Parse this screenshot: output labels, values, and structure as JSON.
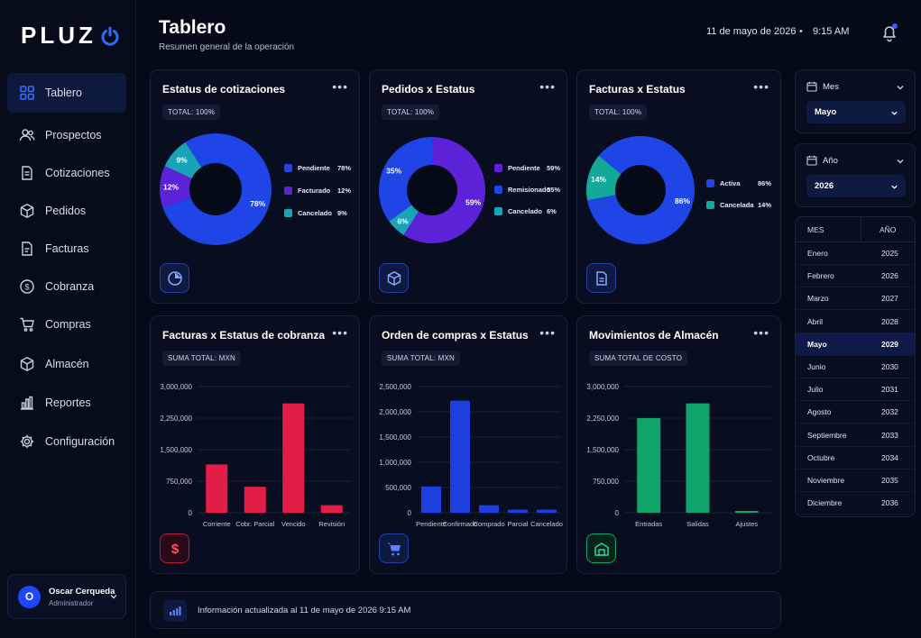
{
  "brand": {
    "logo_text": "PLUZ"
  },
  "sidebar": {
    "items": [
      {
        "label": "Tablero",
        "icon": "grid-icon",
        "active": true
      },
      {
        "label": "Prospectos",
        "icon": "users-icon"
      },
      {
        "label": "Cotizaciones",
        "icon": "document-icon"
      },
      {
        "label": "Pedidos",
        "icon": "box-icon"
      },
      {
        "label": "Facturas",
        "icon": "invoice-icon"
      },
      {
        "label": "Cobranza",
        "icon": "dollar-circle-icon"
      },
      {
        "label": "Compras",
        "icon": "cart-icon"
      },
      {
        "label": "Almacén",
        "icon": "warehouse-box-icon"
      },
      {
        "label": "Reportes",
        "icon": "bar-chart-icon"
      },
      {
        "label": "Configuración",
        "icon": "gear-icon"
      }
    ],
    "user": {
      "initial": "O",
      "name": "Oscar Cerqueda",
      "role": "Administrador"
    }
  },
  "header": {
    "title": "Tablero",
    "subtitle": "Resumen general de la operación",
    "date": "11 de mayo de 2026",
    "separator": "•",
    "time": "9:15 AM"
  },
  "cards": {
    "cotizaciones": {
      "title": "Estatus de cotizaciones",
      "pill": "TOTAL: 100%",
      "more": "•••"
    },
    "pedidos": {
      "title": "Pedidos x Estatus",
      "pill": "TOTAL: 100%",
      "more": "•••"
    },
    "facturas": {
      "title": "Facturas x Estatus",
      "pill": "TOTAL: 100%",
      "more": "•••"
    },
    "cobranza": {
      "title": "Facturas x Estatus de cobranza",
      "pill": "SUMA TOTAL: MXN",
      "more": "•••"
    },
    "compras": {
      "title": "Orden de compras x Estatus",
      "pill": "SUMA TOTAL: MXN",
      "more": "•••"
    },
    "almacen": {
      "title": "Movimientos de Almacén",
      "pill": "SUMA TOTAL DE COSTO",
      "more": "•••"
    }
  },
  "chart_data": [
    {
      "type": "pie",
      "id": "cotizaciones",
      "categories": [
        "Pendiente",
        "Facturado",
        "Cancelado"
      ],
      "values": [
        78,
        12,
        9
      ],
      "labels": [
        "78%",
        "12%",
        "9%"
      ],
      "colors": [
        "#1f45e6",
        "#5b22d8",
        "#1aa3b8"
      ]
    },
    {
      "type": "pie",
      "id": "pedidos",
      "categories": [
        "Pendiente",
        "Remisionado",
        "Cancelado"
      ],
      "values": [
        59,
        35,
        6
      ],
      "labels": [
        "59%",
        "35%",
        "6%"
      ],
      "colors": [
        "#5b22d8",
        "#1f45e6",
        "#1aa3b8"
      ]
    },
    {
      "type": "pie",
      "id": "facturas",
      "categories": [
        "Activa",
        "Cancelada"
      ],
      "values": [
        86,
        14
      ],
      "labels": [
        "86%",
        "14%"
      ],
      "colors": [
        "#1f45e6",
        "#14a898"
      ]
    },
    {
      "type": "bar",
      "id": "cobranza",
      "categories": [
        "Corriente",
        "Cobr. Parcial",
        "Vencido",
        "Revisión"
      ],
      "values": [
        1150000,
        620000,
        2600000,
        180000
      ],
      "yticks": [
        "3,000,000",
        "2,250,000",
        "1,500,000",
        "750,000",
        "0"
      ],
      "ylim": [
        0,
        3000000
      ],
      "color": "#e11d48"
    },
    {
      "type": "bar",
      "id": "compras",
      "categories": [
        "Pendiente",
        "Confirmado",
        "Comprado",
        "Parcial",
        "Cancelado"
      ],
      "values": [
        520000,
        2220000,
        150000,
        60000,
        60000
      ],
      "yticks": [
        "2,500,000",
        "2,000,000",
        "1,500,000",
        "1,000,000",
        "500,000",
        "0"
      ],
      "ylim": [
        0,
        2500000
      ],
      "color": "#1d3fe0"
    },
    {
      "type": "bar",
      "id": "almacen",
      "categories": [
        "Entradas",
        "Salidas",
        "Ajustes"
      ],
      "values": [
        2250000,
        2600000,
        20000
      ],
      "yticks": [
        "3,000,000",
        "2,250,000",
        "1,500,000",
        "750,000",
        "0"
      ],
      "ylim": [
        0,
        3000000
      ],
      "color": "#10a36a"
    }
  ],
  "filters": {
    "month": {
      "label": "Mes",
      "value": "Mayo"
    },
    "year": {
      "label": "Año",
      "value": "2026"
    }
  },
  "month_table": {
    "headers": [
      "MES",
      "AÑO"
    ],
    "rows": [
      {
        "mes": "Enero",
        "anio": "2025"
      },
      {
        "mes": "Febrero",
        "anio": "2026"
      },
      {
        "mes": "Marzo",
        "anio": "2027"
      },
      {
        "mes": "Abril",
        "anio": "2028"
      },
      {
        "mes": "Mayo",
        "anio": "2029",
        "selected": true
      },
      {
        "mes": "Junio",
        "anio": "2030"
      },
      {
        "mes": "Julio",
        "anio": "2031"
      },
      {
        "mes": "Agosto",
        "anio": "2032"
      },
      {
        "mes": "Septiembre",
        "anio": "2033"
      },
      {
        "mes": "Octubre",
        "anio": "2034"
      },
      {
        "mes": "Noviembre",
        "anio": "2035"
      },
      {
        "mes": "Diciembre",
        "anio": "2036"
      }
    ]
  },
  "footer": {
    "text": "Información actualizada al 11 de mayo de 2026 9:15 AM"
  }
}
